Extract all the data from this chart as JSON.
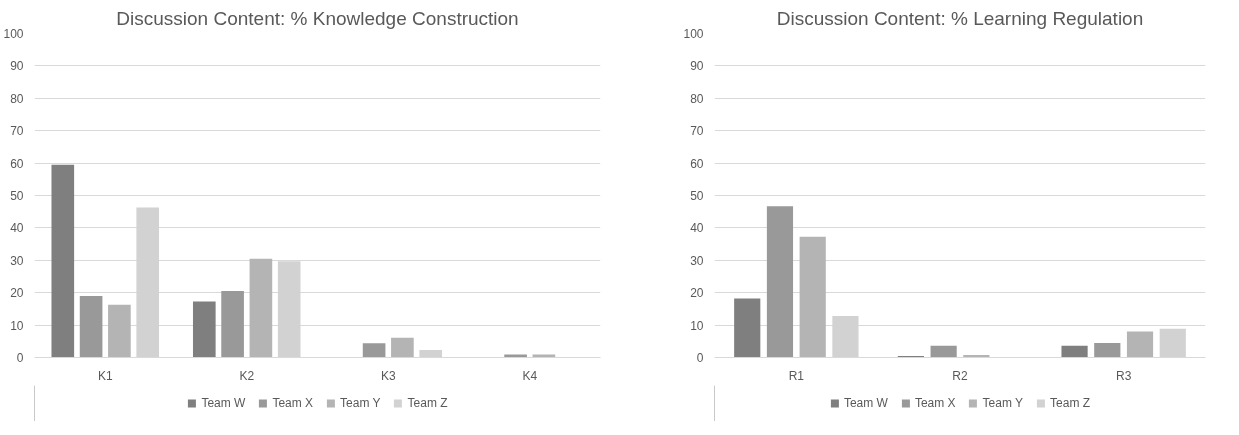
{
  "chart_data": [
    {
      "type": "bar",
      "title": "Discussion Content: % Knowledge Construction",
      "categories": [
        "K1",
        "K2",
        "K3",
        "K4"
      ],
      "series": [
        {
          "name": "Team W",
          "color": "#7f7f7f",
          "values": [
            59.5,
            17.3,
            0,
            0
          ]
        },
        {
          "name": "Team X",
          "color": "#999999",
          "values": [
            19,
            20.5,
            4.4,
            0.9
          ]
        },
        {
          "name": "Team Y",
          "color": "#b4b4b4",
          "values": [
            16.3,
            30.5,
            6.1,
            0.9
          ]
        },
        {
          "name": "Team Z",
          "color": "#d2d2d2",
          "values": [
            46.3,
            29.7,
            2.3,
            0
          ]
        }
      ],
      "ylim": [
        0,
        100
      ],
      "yticks": [
        0,
        10,
        20,
        30,
        40,
        50,
        60,
        70,
        80,
        90,
        100
      ],
      "grid": "y",
      "legend": "bottom"
    },
    {
      "type": "bar",
      "title": "Discussion Content: % Learning Regulation",
      "categories": [
        "R1",
        "R2",
        "R3"
      ],
      "series": [
        {
          "name": "Team W",
          "color": "#7f7f7f",
          "values": [
            18.2,
            0.5,
            3.6
          ]
        },
        {
          "name": "Team X",
          "color": "#999999",
          "values": [
            46.7,
            3.6,
            4.5
          ]
        },
        {
          "name": "Team Y",
          "color": "#b4b4b4",
          "values": [
            37.3,
            0.8,
            8
          ]
        },
        {
          "name": "Team Z",
          "color": "#d2d2d2",
          "values": [
            12.8,
            0,
            8.9
          ]
        }
      ],
      "ylim": [
        0,
        100
      ],
      "yticks": [
        0,
        10,
        20,
        30,
        40,
        50,
        60,
        70,
        80,
        90,
        100
      ],
      "grid": "y",
      "legend": "bottom"
    }
  ]
}
